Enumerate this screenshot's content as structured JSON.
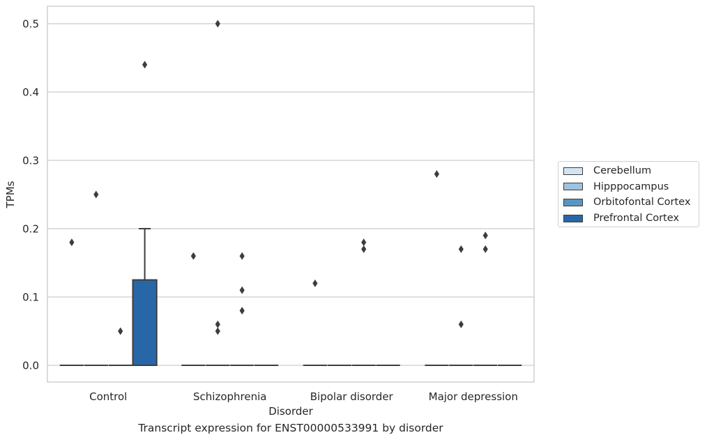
{
  "chart_data": {
    "type": "box",
    "title": "",
    "caption": "Transcript expression for ENST00000533991 by disorder",
    "xlabel": "Disorder",
    "ylabel": "TPMs",
    "ylim": [
      -0.025,
      0.525
    ],
    "yticks": [
      0.0,
      0.1,
      0.2,
      0.3,
      0.4,
      0.5
    ],
    "ytick_labels": [
      "0.0",
      "0.1",
      "0.2",
      "0.3",
      "0.4",
      "0.5"
    ],
    "grid": "horizontal",
    "legend_position": "right",
    "categories": [
      "Control",
      "Schizophrenia",
      "Bipolar disorder",
      "Major depression"
    ],
    "series": [
      {
        "name": "Cerebellum",
        "color": "#d5e4f2",
        "boxes": [
          {
            "min": 0,
            "q1": 0,
            "median": 0,
            "q3": 0,
            "max": 0,
            "outliers": [
              0.18
            ]
          },
          {
            "min": 0,
            "q1": 0,
            "median": 0,
            "q3": 0,
            "max": 0,
            "outliers": [
              0.16
            ]
          },
          {
            "min": 0,
            "q1": 0,
            "median": 0,
            "q3": 0,
            "max": 0,
            "outliers": [
              0.12
            ]
          },
          {
            "min": 0,
            "q1": 0,
            "median": 0,
            "q3": 0,
            "max": 0,
            "outliers": [
              0.28
            ]
          }
        ]
      },
      {
        "name": "Hipppocampus",
        "color": "#9dc3e0",
        "boxes": [
          {
            "min": 0,
            "q1": 0,
            "median": 0,
            "q3": 0,
            "max": 0,
            "outliers": [
              0.25
            ]
          },
          {
            "min": 0,
            "q1": 0,
            "median": 0,
            "q3": 0,
            "max": 0,
            "outliers": [
              0.5,
              0.06,
              0.05
            ]
          },
          {
            "min": 0,
            "q1": 0,
            "median": 0,
            "q3": 0,
            "max": 0,
            "outliers": []
          },
          {
            "min": 0,
            "q1": 0,
            "median": 0,
            "q3": 0,
            "max": 0,
            "outliers": [
              0.17,
              0.06
            ]
          }
        ]
      },
      {
        "name": "Orbitofontal Cortex",
        "color": "#5896c5",
        "boxes": [
          {
            "min": 0,
            "q1": 0,
            "median": 0,
            "q3": 0,
            "max": 0,
            "outliers": [
              0.05
            ]
          },
          {
            "min": 0,
            "q1": 0,
            "median": 0,
            "q3": 0,
            "max": 0,
            "outliers": [
              0.16,
              0.11,
              0.08
            ]
          },
          {
            "min": 0,
            "q1": 0,
            "median": 0,
            "q3": 0,
            "max": 0,
            "outliers": [
              0.18,
              0.17
            ]
          },
          {
            "min": 0,
            "q1": 0,
            "median": 0,
            "q3": 0,
            "max": 0,
            "outliers": [
              0.19,
              0.17
            ]
          }
        ]
      },
      {
        "name": "Prefrontal Cortex",
        "color": "#2767a8",
        "boxes": [
          {
            "min": 0,
            "q1": 0,
            "median": 0,
            "q3": 0.125,
            "max": 0.2,
            "outliers": [
              0.44
            ]
          },
          {
            "min": 0,
            "q1": 0,
            "median": 0,
            "q3": 0,
            "max": 0,
            "outliers": []
          },
          {
            "min": 0,
            "q1": 0,
            "median": 0,
            "q3": 0,
            "max": 0,
            "outliers": []
          },
          {
            "min": 0,
            "q1": 0,
            "median": 0,
            "q3": 0,
            "max": 0,
            "outliers": []
          }
        ]
      }
    ]
  }
}
